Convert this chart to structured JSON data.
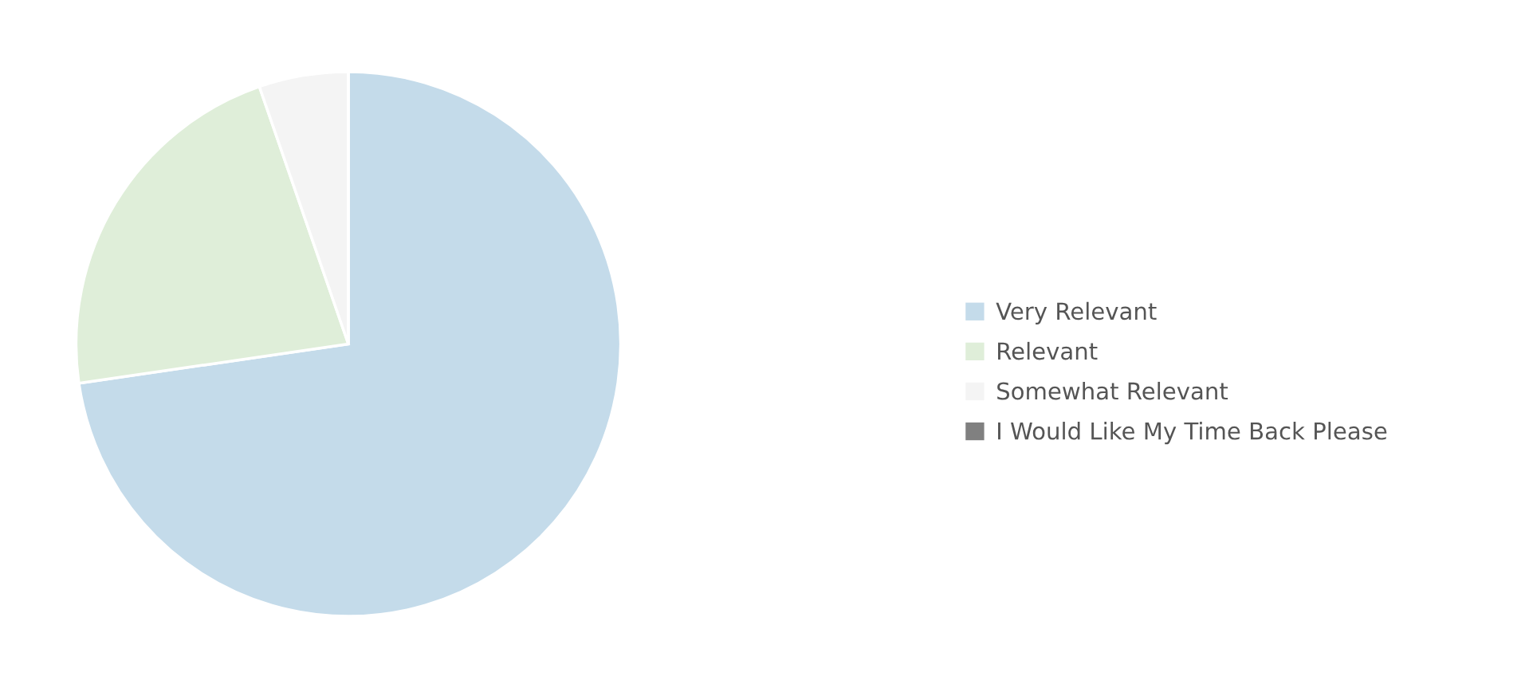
{
  "chart_data": {
    "type": "pie",
    "categories": [
      "Very Relevant",
      "Relevant",
      "Somewhat Relevant",
      "I Would Like My Time Back Please"
    ],
    "values": [
      72.7,
      22.0,
      5.3,
      0
    ],
    "colors": [
      "#c4dbea",
      "#dfeed9",
      "#f4f4f4",
      "#808080"
    ],
    "legend": "right"
  }
}
